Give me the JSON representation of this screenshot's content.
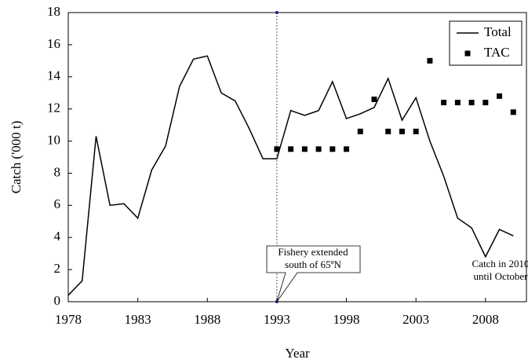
{
  "chart_data": {
    "type": "line",
    "x_label": "Year",
    "y_label": "Catch ('000 t)",
    "x": [
      1978,
      1979,
      1980,
      1981,
      1982,
      1983,
      1984,
      1985,
      1986,
      1987,
      1988,
      1989,
      1990,
      1991,
      1992,
      1993,
      1994,
      1995,
      1996,
      1997,
      1998,
      1999,
      2000,
      2001,
      2002,
      2003,
      2004,
      2005,
      2006,
      2007,
      2008,
      2009,
      2010
    ],
    "series": [
      {
        "name": "Total",
        "color": "#000000",
        "style": "line",
        "values": [
          0.4,
          1.3,
          10.3,
          6.0,
          6.1,
          5.2,
          8.2,
          9.7,
          13.4,
          15.1,
          15.3,
          13.0,
          12.5,
          10.8,
          8.9,
          8.9,
          11.9,
          11.6,
          11.9,
          13.7,
          11.4,
          11.7,
          12.1,
          13.9,
          11.3,
          12.7,
          10.0,
          7.8,
          5.2,
          4.6,
          2.8,
          4.5,
          4.1
        ]
      },
      {
        "name": "TAC",
        "color": "#000000",
        "style": "square",
        "values": [
          null,
          null,
          null,
          null,
          null,
          null,
          null,
          null,
          null,
          null,
          null,
          null,
          null,
          null,
          null,
          9.5,
          9.5,
          9.5,
          9.5,
          9.5,
          9.5,
          10.6,
          12.6,
          10.6,
          10.6,
          10.6,
          15.0,
          12.4,
          12.4,
          12.4,
          12.4,
          12.8,
          11.8
        ]
      }
    ],
    "xlim": [
      1978,
      2011
    ],
    "xticks": [
      1978,
      1983,
      1988,
      1993,
      1998,
      2003,
      2008
    ],
    "ylim": [
      0,
      18
    ],
    "yticks": [
      0,
      2,
      4,
      6,
      8,
      10,
      12,
      14,
      16,
      18
    ],
    "legend": "top-right",
    "annotations": [
      {
        "lines": [
          "Fishery extended",
          "south of 65ºN"
        ]
      },
      {
        "lines": [
          "Catch in 2010",
          "until October"
        ]
      }
    ]
  }
}
